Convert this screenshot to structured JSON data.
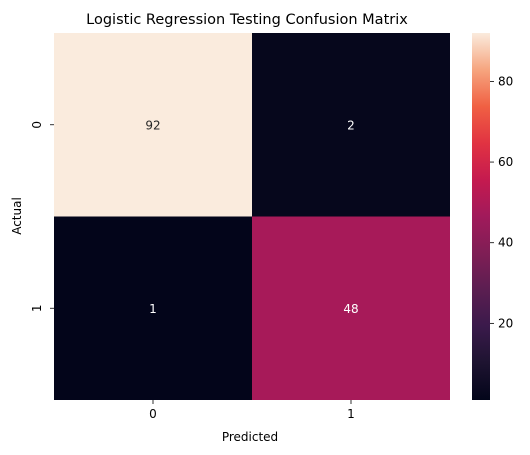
{
  "chart_data": {
    "type": "heatmap",
    "title": "Logistic Regression Testing Confusion Matrix",
    "xlabel": "Predicted",
    "ylabel": "Actual",
    "x_categories": [
      "0",
      "1"
    ],
    "y_categories": [
      "0",
      "1"
    ],
    "values": [
      [
        92,
        2
      ],
      [
        1,
        48
      ]
    ],
    "colorbar": {
      "vmin": 1,
      "vmax": 92,
      "ticks": [
        20,
        40,
        60,
        80
      ],
      "tick_labels": [
        "20",
        "40",
        "60",
        "80"
      ],
      "colormap": "rocket"
    },
    "grid": false,
    "legend": "colorbar-right"
  }
}
